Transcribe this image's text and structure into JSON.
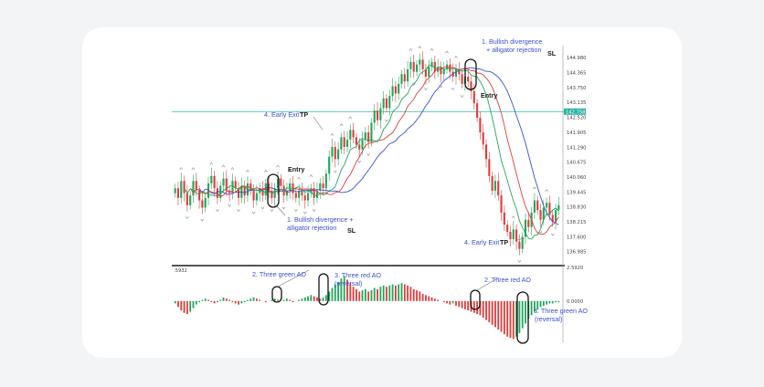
{
  "colors": {
    "card_bg": "#ffffff",
    "page_bg": "#f3f4f6",
    "bull_candle": "#22a65a",
    "bear_candle": "#e03c3c",
    "alligator_jaw": "#3b4fd1",
    "alligator_teeth": "#e03c3c",
    "alligator_lips": "#22a65a",
    "level_line": "#2bb3a3",
    "annotation_text": "#3b4fd1",
    "price_tag": "#2bb3a3"
  },
  "chart_data": [
    {
      "type": "candlestick",
      "title": "",
      "price_axis_ticks": [
        "144.980",
        "144.365",
        "143.750",
        "143.135",
        "142.520",
        "141.905",
        "141.290",
        "140.675",
        "140.060",
        "139.445",
        "138.830",
        "138.215",
        "137.600",
        "136.985"
      ],
      "price_tag": "142.758",
      "level_price": 142.758,
      "ylim": [
        136.9,
        145.1
      ],
      "candles_close": [
        139.6,
        139.2,
        139.9,
        139.4,
        138.9,
        139.3,
        139.9,
        139.5,
        139.1,
        138.8,
        139.2,
        139.8,
        140.1,
        139.6,
        139.2,
        139.7,
        140.0,
        139.5,
        139.4,
        139.9,
        139.6,
        139.2,
        139.7,
        139.3,
        139.8,
        139.5,
        139.1,
        139.4,
        139.6,
        139.3,
        139.8,
        139.5,
        139.2,
        139.6,
        140.0,
        139.7,
        139.3,
        139.5,
        139.8,
        139.4,
        139.2,
        139.5,
        139.3,
        139.1,
        139.4,
        139.6,
        139.2,
        139.5,
        139.8,
        139.6,
        140.2,
        140.9,
        141.3,
        140.8,
        141.2,
        141.7,
        141.3,
        141.6,
        142.0,
        141.7,
        141.4,
        141.2,
        141.6,
        141.9,
        141.5,
        142.3,
        142.8,
        142.4,
        142.9,
        143.3,
        142.9,
        143.4,
        143.8,
        143.5,
        143.9,
        144.3,
        144.0,
        144.5,
        144.8,
        144.4,
        144.7,
        144.9,
        144.5,
        144.2,
        144.6,
        144.8,
        144.4,
        144.6,
        144.3,
        144.5,
        144.7,
        144.4,
        144.2,
        144.5,
        144.3,
        143.9,
        144.2,
        144.0,
        143.6,
        143.1,
        142.5,
        141.9,
        141.4,
        140.8,
        140.1,
        139.5,
        139.9,
        139.3,
        138.6,
        138.1,
        137.8,
        137.5,
        137.9,
        137.4,
        137.1,
        137.6,
        138.3,
        138.0,
        138.6,
        139.1,
        138.7,
        138.3,
        138.8,
        139.0,
        138.5,
        138.2,
        138.7,
        138.9
      ]
    },
    {
      "type": "bar",
      "title": "",
      "indicator_ticks": [
        "2.5920",
        "0.0000",
        "0.0000"
      ],
      "left_tick": ".5932",
      "ylim": [
        -3.4,
        2.6
      ],
      "ao_values": [
        -0.2,
        -0.5,
        -0.8,
        -1.0,
        -1.1,
        -0.9,
        -0.6,
        -0.3,
        -0.1,
        0.1,
        0.2,
        0.1,
        -0.1,
        -0.2,
        -0.1,
        0.1,
        0.3,
        0.2,
        0.1,
        -0.1,
        -0.2,
        -0.3,
        -0.2,
        -0.1,
        0.1,
        0.2,
        0.3,
        0.2,
        0.1,
        0.0,
        -0.1,
        0.0,
        0.1,
        0.2,
        0.1,
        0.0,
        0.1,
        0.2,
        0.1,
        -0.1,
        0.0,
        0.1,
        0.2,
        0.3,
        0.4,
        0.5,
        0.4,
        0.3,
        0.2,
        0.3,
        0.5,
        0.8,
        1.1,
        1.4,
        1.6,
        1.9,
        2.1,
        1.8,
        1.5,
        1.2,
        1.0,
        0.8,
        0.9,
        1.0,
        0.8,
        0.9,
        1.1,
        1.0,
        1.2,
        1.3,
        1.2,
        1.3,
        1.4,
        1.3,
        1.4,
        1.5,
        1.4,
        1.3,
        1.2,
        1.0,
        0.9,
        0.8,
        0.6,
        0.5,
        0.4,
        0.3,
        0.2,
        0.1,
        0.0,
        -0.1,
        -0.2,
        -0.3,
        -0.2,
        -0.4,
        -0.5,
        -0.6,
        -0.7,
        -0.8,
        -0.9,
        -1.0,
        -1.1,
        -1.2,
        -1.4,
        -1.6,
        -1.8,
        -2.0,
        -2.2,
        -2.4,
        -2.6,
        -2.8,
        -3.0,
        -3.1,
        -3.2,
        -3.0,
        -2.7,
        -2.3,
        -1.9,
        -1.5,
        -1.2,
        -0.9,
        -0.7,
        -0.5,
        -0.4,
        -0.3,
        -0.2,
        -0.2,
        -0.1,
        -0.1
      ]
    }
  ],
  "annotations": {
    "sig1_top_title": "1. Bullish divergence",
    "sig1_top_sub": "+ alligator rejection",
    "sl_top": "SL",
    "entry_top": "Entry",
    "early_exit_top_text": "4. Early Exit",
    "tp_top": "TP",
    "entry_left": "Entry",
    "sig1_bottom_title": "1. Bullish divergence +",
    "sig1_bottom_sub": "alligator rejection",
    "sl_bottom": "SL",
    "early_exit_bottom_text": "4. Early Exit",
    "tp_bottom": "TP",
    "ao_green_left": "2. Three green AO",
    "ao_red_left_1": "3. Three red AO",
    "ao_red_left_2": "(reversal)",
    "ao_red_right": "2. Three red AO",
    "ao_green_right_1": "3. Three green AO",
    "ao_green_right_2": "(reversal)"
  }
}
